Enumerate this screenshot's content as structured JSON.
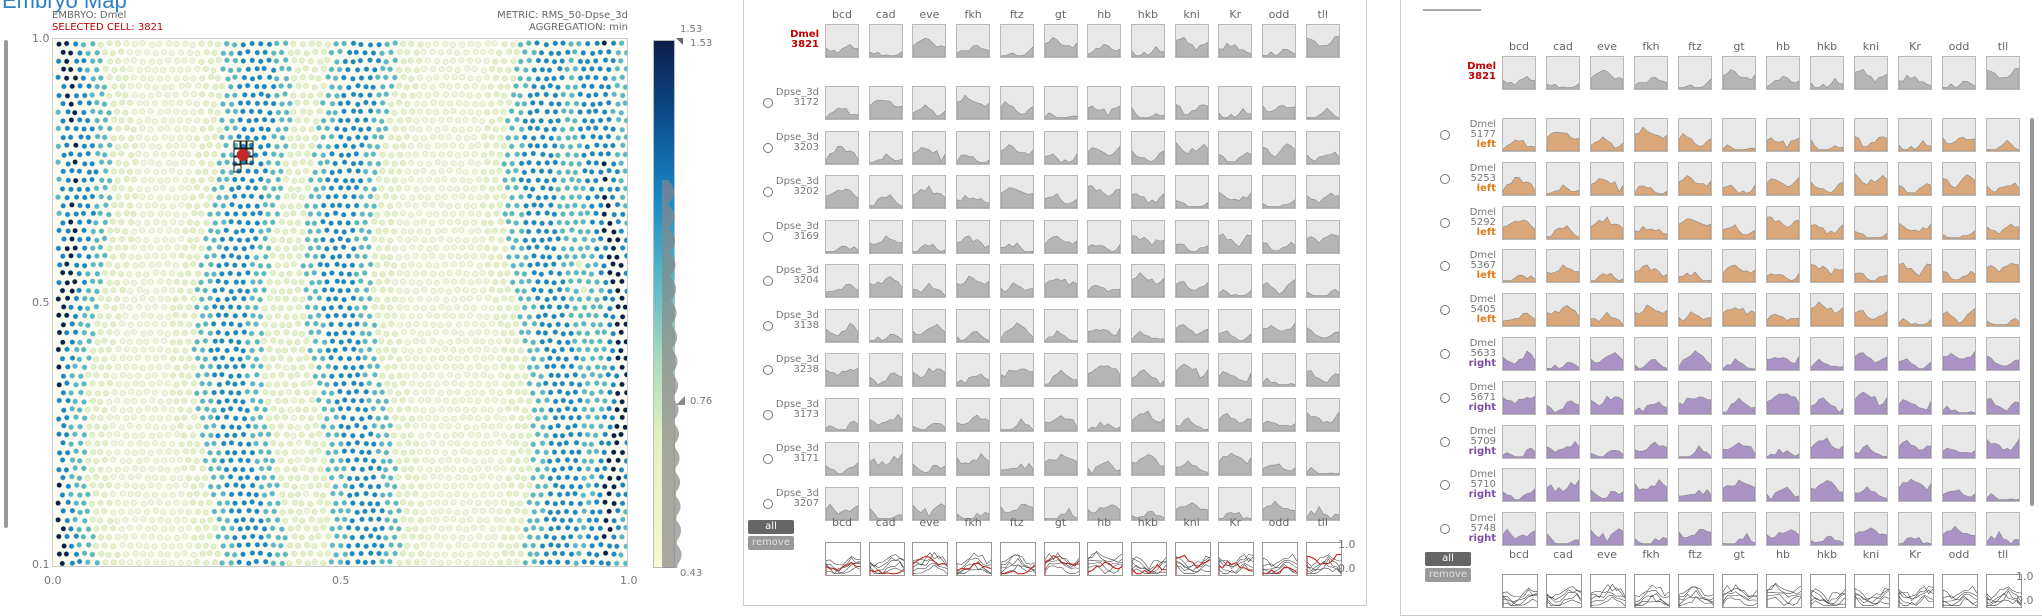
{
  "map": {
    "title": "Embryo Map",
    "embryo_label": "EMBRYO: Dmel",
    "selected_cell_label": "SELECTED CELL: 3821",
    "metric_label": "METRIC: RMS_50-Dpse_3d",
    "aggregation_label": "AGGREGATION: min",
    "x_ticks": [
      "0.0",
      "0.5",
      "1.0"
    ],
    "y_ticks": [
      "1.0",
      "0.5",
      "0.1"
    ],
    "colorbar_max_a": "1.53",
    "colorbar_max_b": "1.53",
    "colorbar_mid": "0.76",
    "colorbar_min": "0.43",
    "colors": {
      "deep": "#0c1d4a",
      "mid": "#1a88c7",
      "teal": "#56b8c8",
      "light": "#e2f0c0",
      "selected": "#c62828"
    }
  },
  "genes": [
    "bcd",
    "cad",
    "eve",
    "fkh",
    "ftz",
    "gt",
    "hb",
    "hkb",
    "kni",
    "Kr",
    "odd",
    "tll"
  ],
  "middle_panel": {
    "ref_row": {
      "species": "Dmel",
      "id": "3821"
    },
    "rows": [
      {
        "species": "Dpse_3d",
        "id": "3172"
      },
      {
        "species": "Dpse_3d",
        "id": "3203"
      },
      {
        "species": "Dpse_3d",
        "id": "3202"
      },
      {
        "species": "Dpse_3d",
        "id": "3169"
      },
      {
        "species": "Dpse_3d",
        "id": "3204"
      },
      {
        "species": "Dpse_3d",
        "id": "3138"
      },
      {
        "species": "Dpse_3d",
        "id": "3238"
      },
      {
        "species": "Dpse_3d",
        "id": "3173"
      },
      {
        "species": "Dpse_3d",
        "id": "3171"
      },
      {
        "species": "Dpse_3d",
        "id": "3207"
      }
    ],
    "all_button": "all",
    "remove_button": "remove",
    "scale_top": "1.0",
    "scale_bottom": "0.0"
  },
  "right_panel": {
    "ref_row": {
      "species": "Dmel",
      "id": "3821"
    },
    "rows": [
      {
        "species": "Dmel",
        "id": "5177",
        "tag": "left"
      },
      {
        "species": "Dmel",
        "id": "5253",
        "tag": "left"
      },
      {
        "species": "Dmel",
        "id": "5292",
        "tag": "left"
      },
      {
        "species": "Dmel",
        "id": "5367",
        "tag": "left"
      },
      {
        "species": "Dmel",
        "id": "5405",
        "tag": "left"
      },
      {
        "species": "Dmel",
        "id": "5633",
        "tag": "right"
      },
      {
        "species": "Dmel",
        "id": "5671",
        "tag": "right"
      },
      {
        "species": "Dmel",
        "id": "5709",
        "tag": "right"
      },
      {
        "species": "Dmel",
        "id": "5710",
        "tag": "right"
      },
      {
        "species": "Dmel",
        "id": "5748",
        "tag": "right"
      }
    ],
    "all_button": "all",
    "remove_button": "remove",
    "scale_top": "1.0",
    "scale_bottom": "0.0",
    "colors": {
      "left": "#d9a77a",
      "right": "#a893c4",
      "left_text": "#e07b1a",
      "right_text": "#7b4fa5"
    }
  }
}
